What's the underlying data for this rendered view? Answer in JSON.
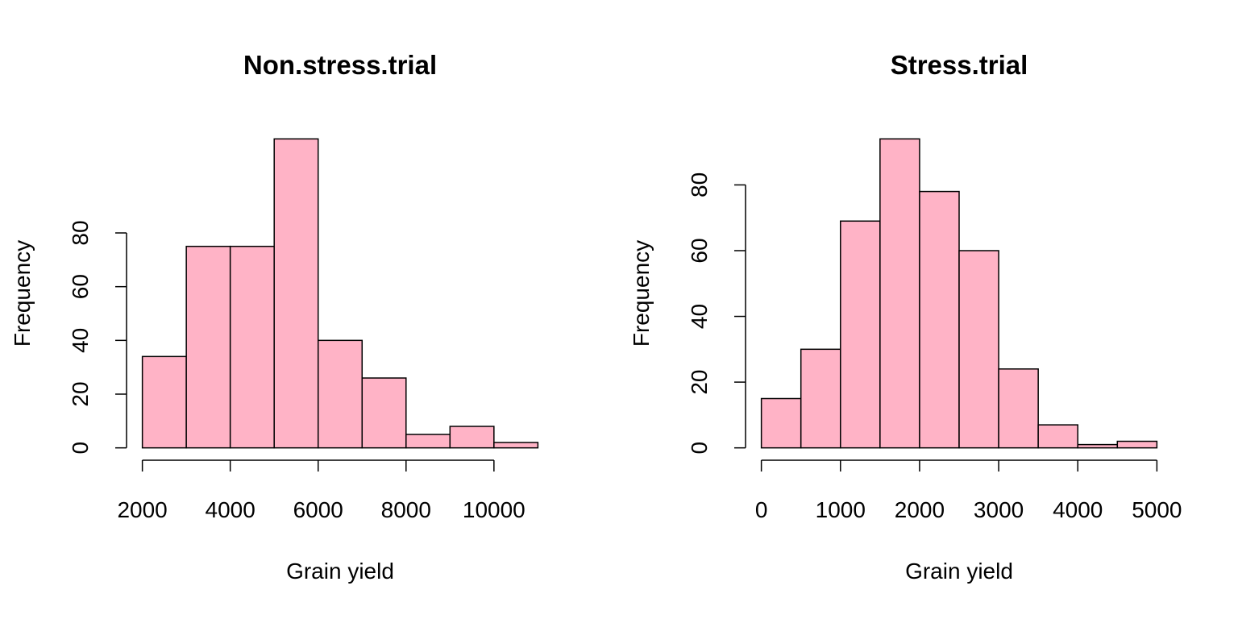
{
  "chart_data": [
    {
      "type": "histogram",
      "title": "Non.stress.trial",
      "xlabel": "Grain yield",
      "ylabel": "Frequency",
      "bins": [
        2000,
        3000,
        4000,
        5000,
        6000,
        7000,
        8000,
        9000,
        10000,
        11000
      ],
      "values": [
        34,
        75,
        75,
        115,
        40,
        26,
        5,
        8,
        2
      ],
      "color": "#ffb3c6",
      "xlim": [
        1640,
        11360
      ],
      "ylim": [
        -4.6,
        119.6
      ],
      "xticks": [
        2000,
        4000,
        6000,
        8000,
        10000
      ],
      "yticks": [
        0,
        20,
        40,
        60,
        80
      ]
    },
    {
      "type": "histogram",
      "title": "Stress.trial",
      "xlabel": "Grain yield",
      "ylabel": "Frequency",
      "bins": [
        0,
        500,
        1000,
        1500,
        2000,
        2500,
        3000,
        3500,
        4000,
        4500,
        5000
      ],
      "values": [
        15,
        30,
        69,
        94,
        78,
        60,
        24,
        7,
        1,
        2
      ],
      "color": "#ffb3c6",
      "xlim": [
        -200,
        5200
      ],
      "ylim": [
        -3.76,
        97.76
      ],
      "xticks": [
        0,
        1000,
        2000,
        3000,
        4000,
        5000
      ],
      "yticks": [
        0,
        20,
        40,
        60,
        80
      ]
    }
  ]
}
